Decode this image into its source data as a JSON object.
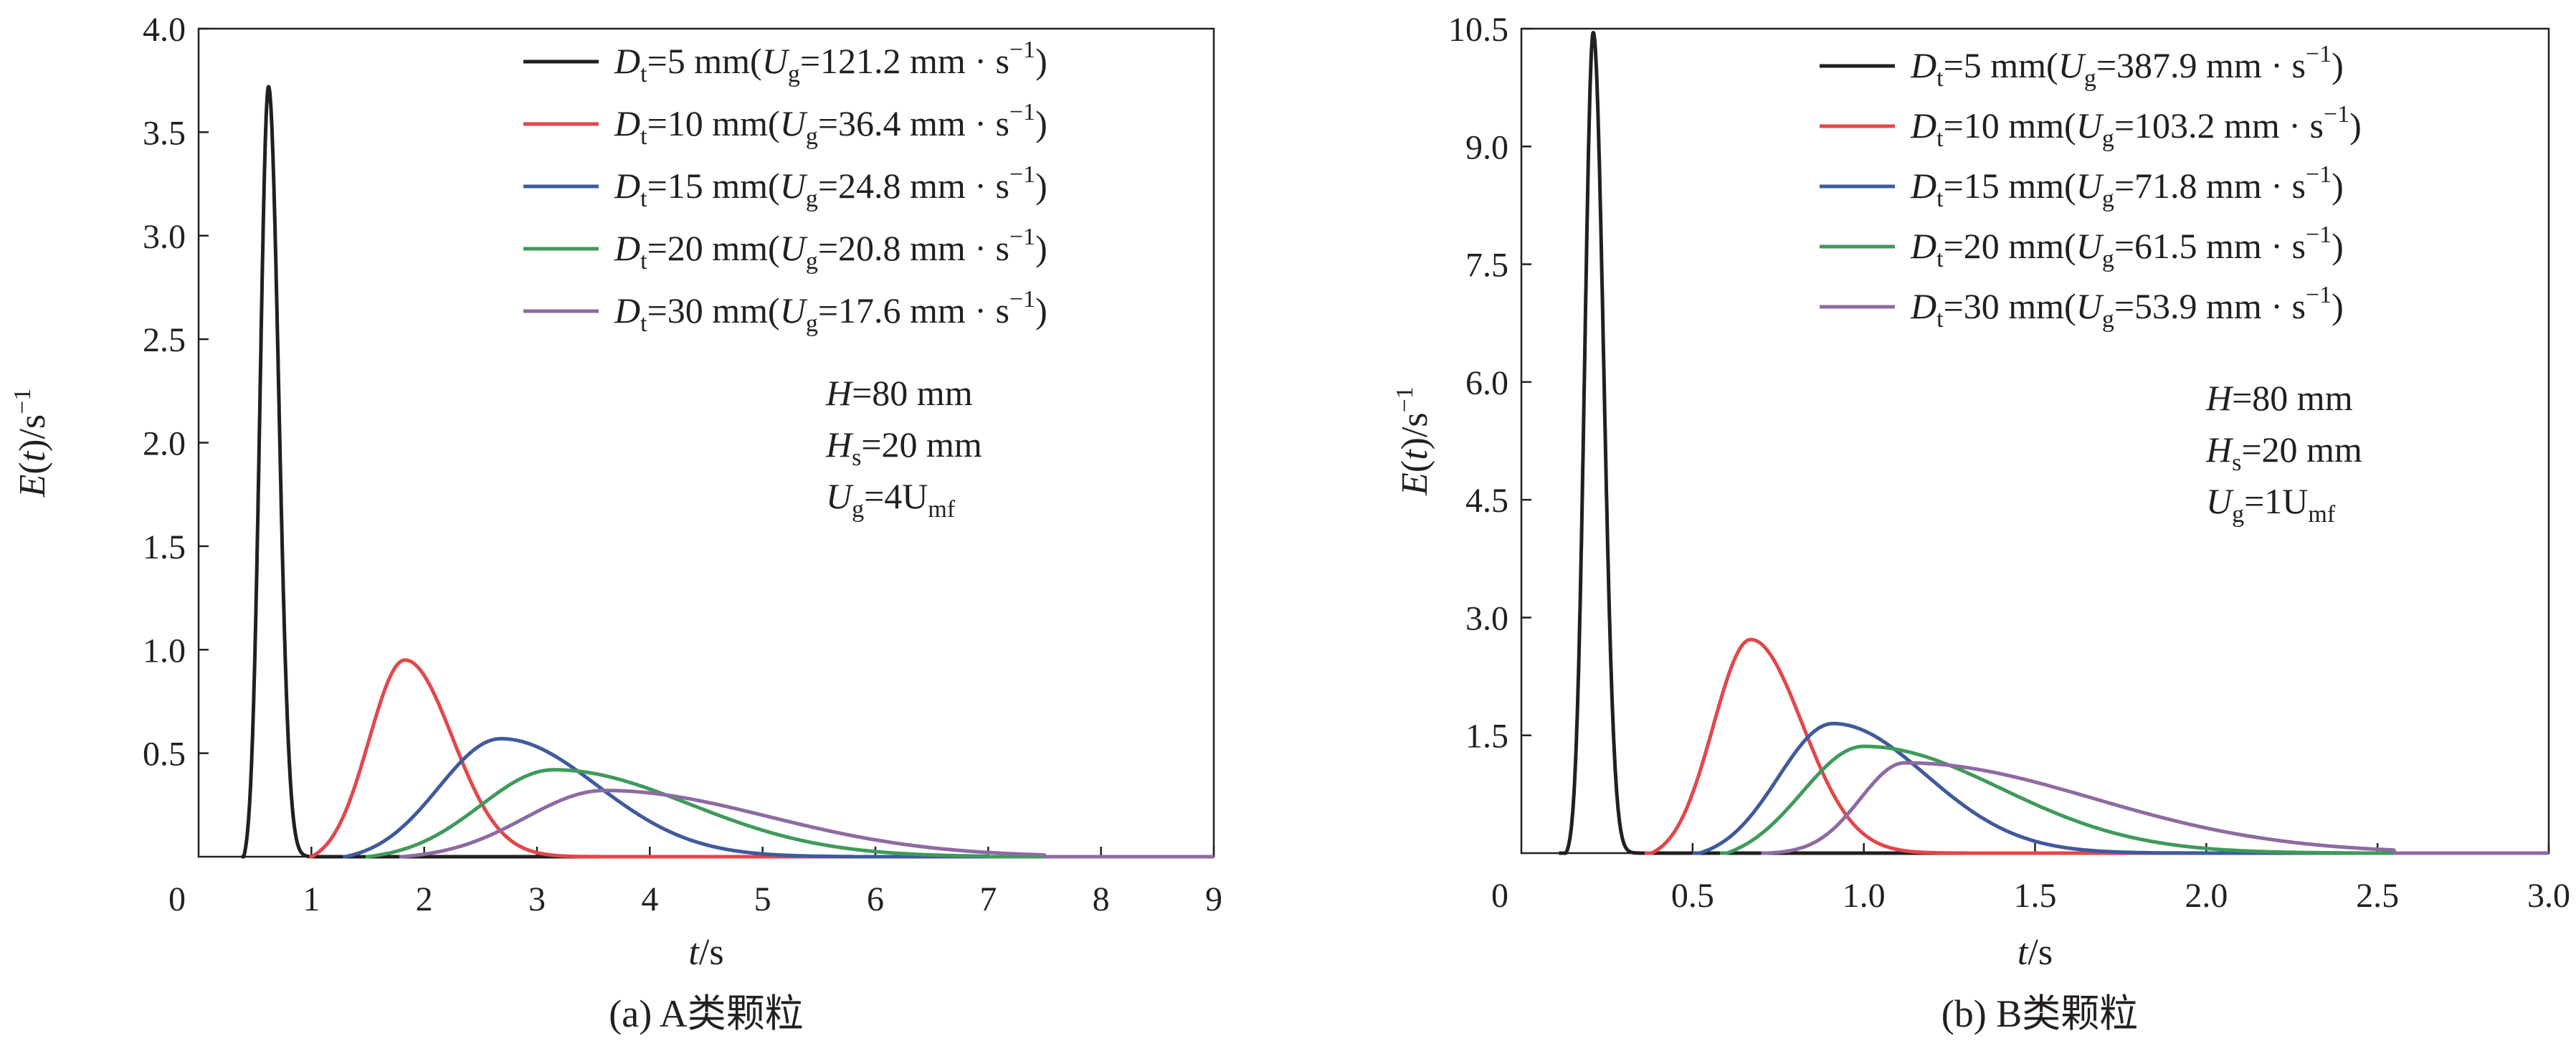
{
  "chart_data": [
    {
      "type": "line",
      "caption": "(a) A类颗粒",
      "xlabel": "t/s",
      "ylabel": "E(t)/s⁻¹",
      "xlim": [
        0,
        9
      ],
      "ylim": [
        0,
        4.0
      ],
      "xticks": [
        1,
        2,
        3,
        4,
        5,
        6,
        7,
        8,
        9
      ],
      "yticks": [
        0.5,
        1.0,
        1.5,
        2.0,
        2.5,
        3.0,
        3.5,
        4.0
      ],
      "origin_label": "0",
      "legend_position": "top-right",
      "annotations": [
        {
          "var": "H",
          "sub": "",
          "eq": "=80 mm"
        },
        {
          "var": "H",
          "sub": "s",
          "eq": "=20 mm"
        },
        {
          "var": "U",
          "sub": "g",
          "eq": "=4U",
          "eq_sub": "mf"
        }
      ],
      "series": [
        {
          "name": "Dt=5 mm(Ug=121.2 mm · s−1)",
          "legend": {
            "dt": "=5 mm(",
            "ug": "=121.2 mm · s"
          },
          "color": "#231f20",
          "peak_t": 0.62,
          "peak_e": 3.72,
          "onset_t": 0.4,
          "sigma_left": 0.075,
          "sigma_right": 0.09,
          "end_t": 1.25
        },
        {
          "name": "Dt=10 mm(Ug=36.4 mm · s−1)",
          "legend": {
            "dt": "=10 mm(",
            "ug": "=36.4 mm · s"
          },
          "color": "#e2474b",
          "peak_t": 1.83,
          "peak_e": 0.95,
          "onset_t": 1.0,
          "sigma_left": 0.32,
          "sigma_right": 0.42,
          "end_t": 3.6
        },
        {
          "name": "Dt=15 mm(Ug=24.8 mm · s−1)",
          "legend": {
            "dt": "=15 mm(",
            "ug": "=24.8 mm · s"
          },
          "color": "#3f5a9c",
          "peak_t": 2.68,
          "peak_e": 0.57,
          "onset_t": 1.3,
          "sigma_left": 0.55,
          "sigma_right": 0.85,
          "end_t": 5.8
        },
        {
          "name": "Dt=20 mm(Ug=20.8 mm · s−1)",
          "legend": {
            "dt": "=20 mm(",
            "ug": "=20.8 mm · s"
          },
          "color": "#3f9a5a",
          "peak_t": 3.15,
          "peak_e": 0.42,
          "onset_t": 1.5,
          "sigma_left": 0.65,
          "sigma_right": 1.2,
          "end_t": 7.0
        },
        {
          "name": "Dt=30 mm(Ug=17.6 mm · s−1)",
          "legend": {
            "dt": "=30 mm(",
            "ug": "=17.6 mm · s"
          },
          "color": "#8e6aa3",
          "peak_t": 3.6,
          "peak_e": 0.32,
          "onset_t": 1.8,
          "sigma_left": 0.7,
          "sigma_right": 1.45,
          "end_t": 7.5
        }
      ]
    },
    {
      "type": "line",
      "caption": "(b) B类颗粒",
      "xlabel": "t/s",
      "ylabel": "E(t)/s⁻¹",
      "xlim": [
        0,
        3.0
      ],
      "ylim": [
        0,
        10.5
      ],
      "xticks": [
        0.5,
        1.0,
        1.5,
        2.0,
        2.5,
        3.0
      ],
      "xtick_labels": [
        "0.5",
        "1.0",
        "1.5",
        "2.0",
        "2.5",
        "3.0"
      ],
      "yticks": [
        1.5,
        3.0,
        4.5,
        6.0,
        7.5,
        9.0,
        10.5
      ],
      "origin_label": "0",
      "legend_position": "top-right",
      "annotations": [
        {
          "var": "H",
          "sub": "",
          "eq": "=80 mm"
        },
        {
          "var": "H",
          "sub": "s",
          "eq": "=20 mm"
        },
        {
          "var": "U",
          "sub": "g",
          "eq": "=1U",
          "eq_sub": "mf"
        }
      ],
      "series": [
        {
          "name": "Dt=5 mm(Ug=387.9 mm · s−1)",
          "legend": {
            "dt": "=5 mm(",
            "ug": "=387.9 mm · s"
          },
          "color": "#231f20",
          "peak_t": 0.21,
          "peak_e": 10.45,
          "onset_t": 0.13,
          "sigma_left": 0.025,
          "sigma_right": 0.03,
          "end_t": 0.42
        },
        {
          "name": "Dt=10 mm(Ug=103.2 mm · s−1)",
          "legend": {
            "dt": "=10 mm(",
            "ug": "=103.2 mm · s"
          },
          "color": "#e2474b",
          "peak_t": 0.67,
          "peak_e": 2.72,
          "onset_t": 0.38,
          "sigma_left": 0.11,
          "sigma_right": 0.15,
          "end_t": 1.35
        },
        {
          "name": "Dt=15 mm(Ug=71.8 mm · s−1)",
          "legend": {
            "dt": "=15 mm(",
            "ug": "=71.8 mm · s"
          },
          "color": "#3f5a9c",
          "peak_t": 0.91,
          "peak_e": 1.65,
          "onset_t": 0.52,
          "sigma_left": 0.16,
          "sigma_right": 0.27,
          "end_t": 2.1
        },
        {
          "name": "Dt=20 mm(Ug=61.5 mm · s−1)",
          "legend": {
            "dt": "=20 mm(",
            "ug": "=61.5 mm · s"
          },
          "color": "#3f9a5a",
          "peak_t": 1.0,
          "peak_e": 1.36,
          "onset_t": 0.6,
          "sigma_left": 0.18,
          "sigma_right": 0.4,
          "end_t": 2.45
        },
        {
          "name": "Dt=30 mm(Ug=53.9 mm · s−1)",
          "legend": {
            "dt": "=30 mm(",
            "ug": "=53.9 mm · s"
          },
          "color": "#8e6aa3",
          "peak_t": 1.12,
          "peak_e": 1.15,
          "onset_t": 0.72,
          "sigma_left": 0.13,
          "sigma_right": 0.55,
          "end_t": 2.55
        }
      ]
    }
  ]
}
